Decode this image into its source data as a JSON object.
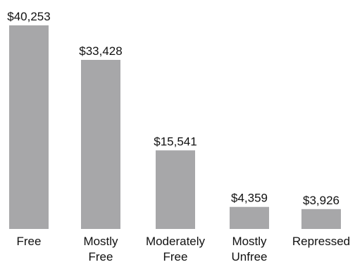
{
  "chart_data": {
    "type": "bar",
    "categories": [
      [
        "Free"
      ],
      [
        "Mostly",
        "Free"
      ],
      [
        "Moderately",
        "Free"
      ],
      [
        "Mostly",
        "Unfree"
      ],
      [
        "Repressed"
      ]
    ],
    "values": [
      40253,
      33428,
      15541,
      4359,
      3926
    ],
    "value_labels": [
      "$40,253",
      "$33,428",
      "$15,541",
      "$4,359",
      "$3,926"
    ],
    "colors": {
      "bar": "#a7a7a9",
      "text": "#111111"
    },
    "ylim": [
      0,
      40253
    ],
    "grid": false
  }
}
